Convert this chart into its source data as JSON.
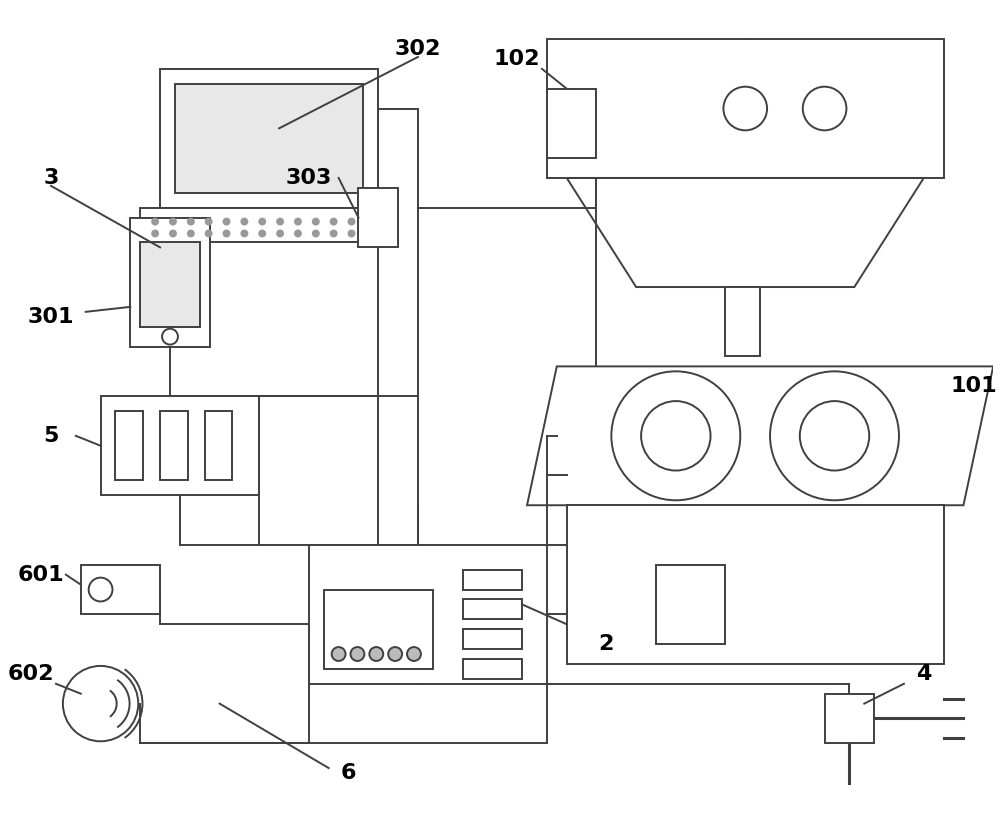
{
  "bg_color": "#ffffff",
  "line_color": "#404040",
  "lw": 1.4,
  "label_fontsize": 16,
  "figsize": [
    10.0,
    8.26
  ],
  "dpi": 100
}
